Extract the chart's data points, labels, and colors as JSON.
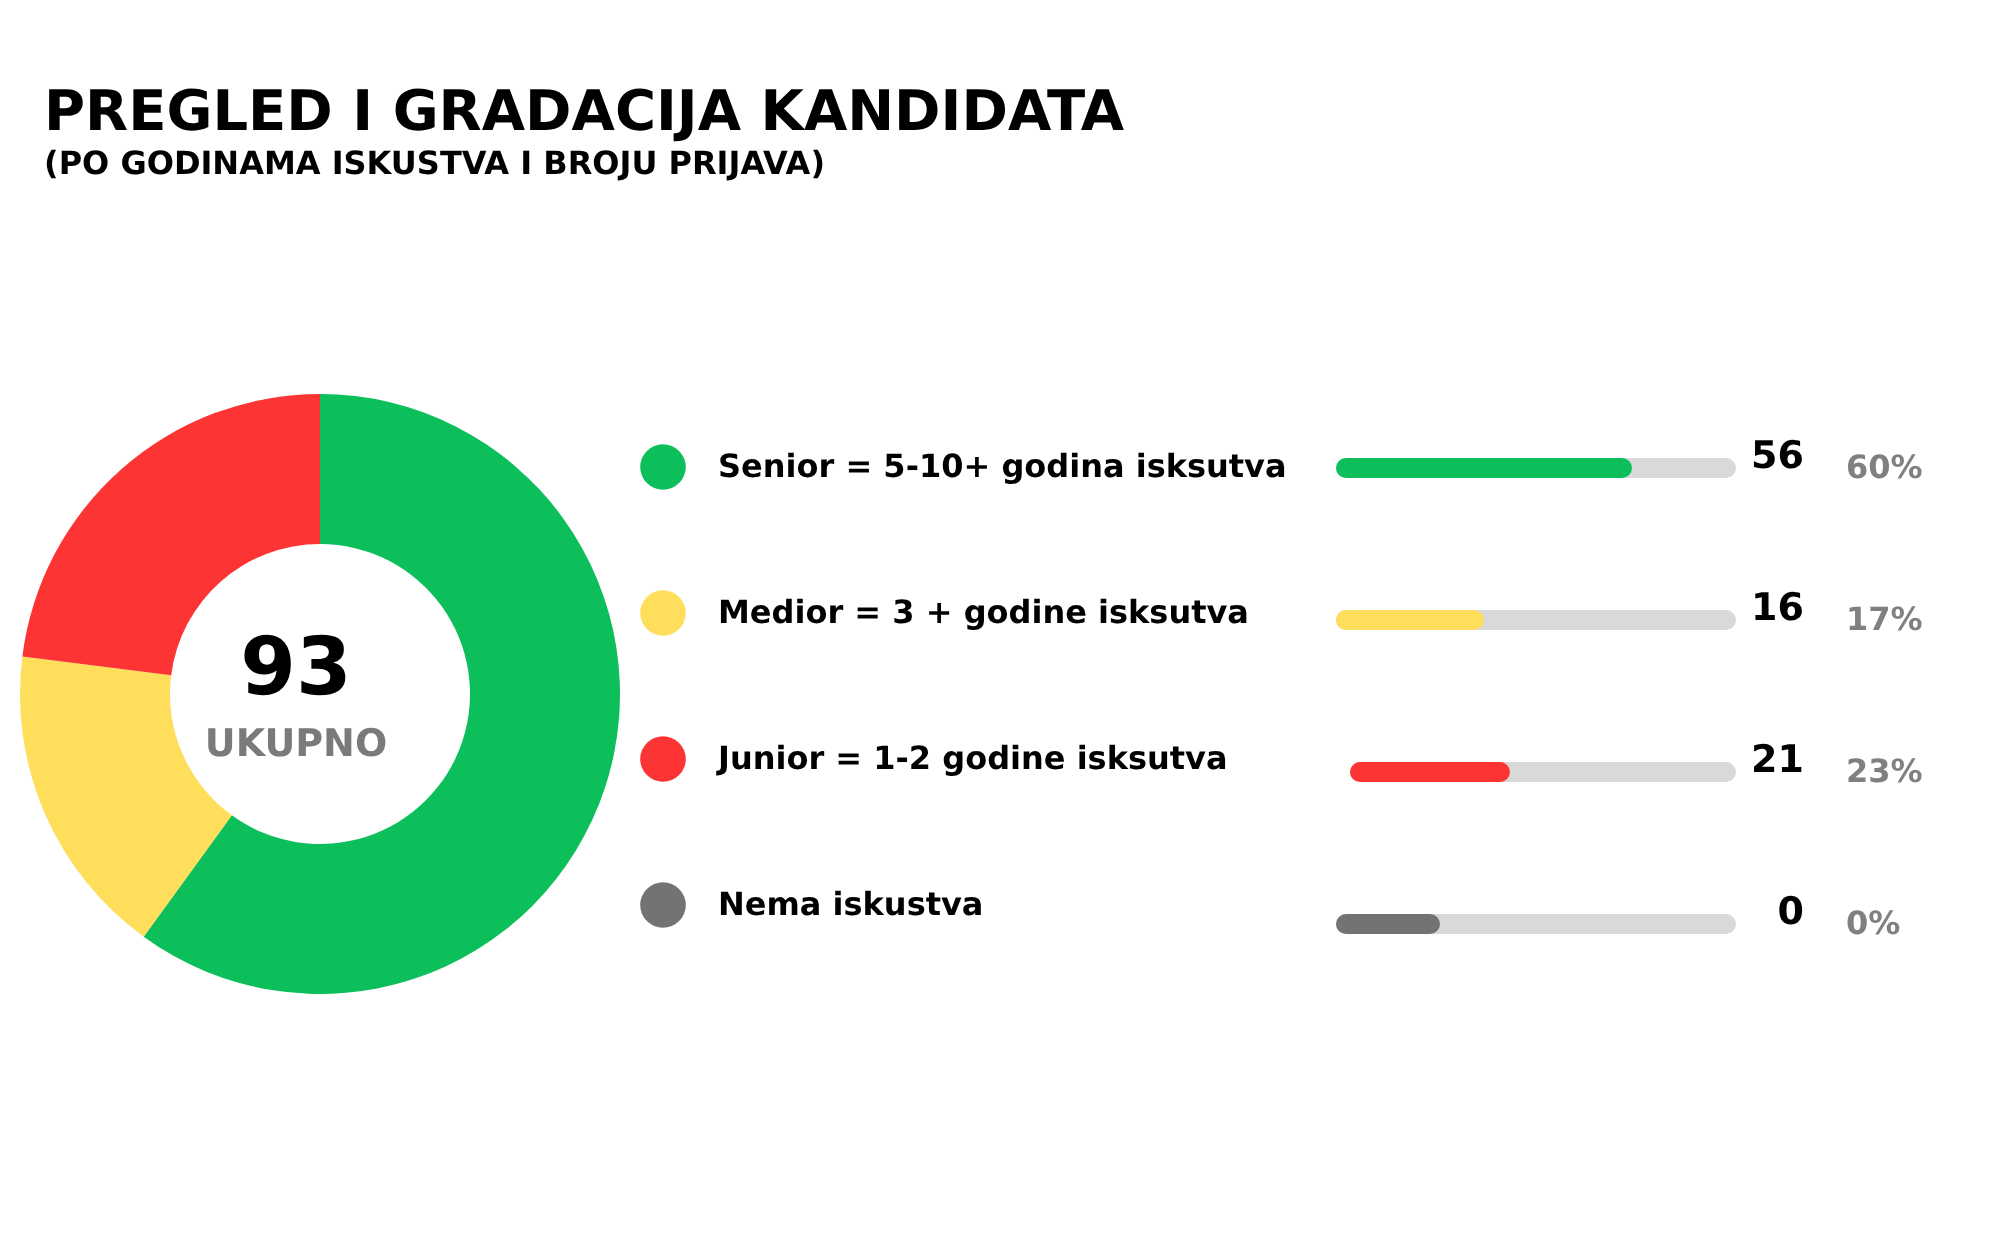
{
  "chart_data": {
    "type": "donut",
    "title": "PREGLED I GRADACIJA KANDIDATA",
    "subtitle": "(PO GODINAMA ISKUSTVA I BROJU PRIJAVA)",
    "categories": [
      "Senior = 5-10+ godina isksutva",
      "Medior = 3 + godine isksutva",
      "Junior = 1-2 godine isksutva",
      "Nema iskustva"
    ],
    "values": [
      60,
      17,
      23,
      0
    ],
    "colors": [
      "#0dbf5b",
      "#fede5b",
      "#fd3434",
      "#737373"
    ],
    "value_labels": [
      "60%",
      "17%",
      "23%",
      "0%"
    ],
    "annotations": [
      "93",
      "UKUPNO",
      "56",
      "16",
      "21",
      "0"
    ],
    "legend": "right"
  }
}
